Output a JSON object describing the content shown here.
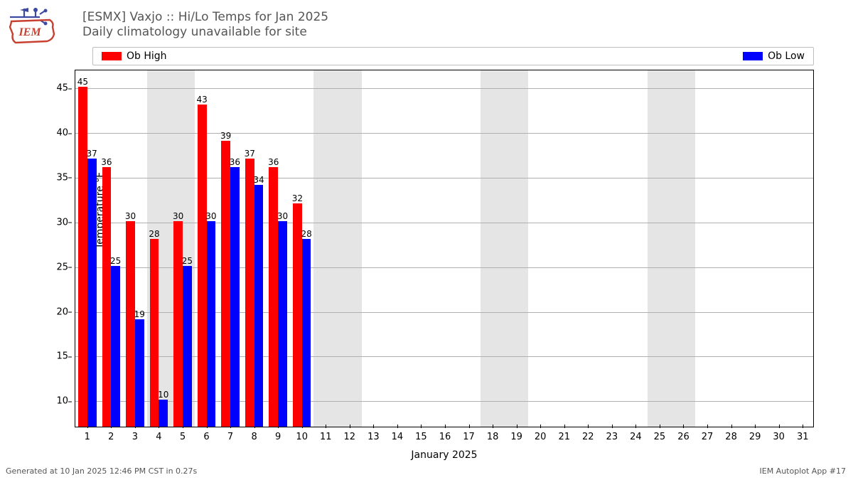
{
  "title_line1": "[ESMX] Vaxjo :: Hi/Lo Temps for Jan 2025",
  "title_line2": "Daily climatology unavailable for site",
  "legend": {
    "high": {
      "label": "Ob High",
      "color": "#ff0000"
    },
    "low": {
      "label": "Ob Low",
      "color": "#0000ff"
    }
  },
  "chart": {
    "type": "bar",
    "xlabel": "January 2025",
    "ylabel": "Temperature °F",
    "background_color": "#ffffff",
    "weekend_band_color": "#e5e5e5",
    "grid_color": "#b0b0b0",
    "text_color": "#000000",
    "title_color": "#555555",
    "xlim": [
      0.5,
      31.5
    ],
    "ylim": [
      7,
      47
    ],
    "yticks": [
      10,
      15,
      20,
      25,
      30,
      35,
      40,
      45
    ],
    "days": [
      1,
      2,
      3,
      4,
      5,
      6,
      7,
      8,
      9,
      10,
      11,
      12,
      13,
      14,
      15,
      16,
      17,
      18,
      19,
      20,
      21,
      22,
      23,
      24,
      25,
      26,
      27,
      28,
      29,
      30,
      31
    ],
    "weekend_days": [
      4,
      5,
      11,
      12,
      18,
      19,
      25,
      26
    ],
    "bar_width": 0.38,
    "label_fontsize": 12,
    "axis_fontsize": 13,
    "title_fontsize": 17,
    "data": [
      {
        "day": 1,
        "high": 45,
        "low": 37
      },
      {
        "day": 2,
        "high": 36,
        "low": 25
      },
      {
        "day": 3,
        "high": 30,
        "low": 19
      },
      {
        "day": 4,
        "high": 28,
        "low": 10
      },
      {
        "day": 5,
        "high": 30,
        "low": 25
      },
      {
        "day": 6,
        "high": 43,
        "low": 30
      },
      {
        "day": 7,
        "high": 39,
        "low": 36
      },
      {
        "day": 8,
        "high": 37,
        "low": 34
      },
      {
        "day": 9,
        "high": 36,
        "low": 30
      },
      {
        "day": 10,
        "high": 32,
        "low": 28
      }
    ]
  },
  "footer_left": "Generated at 10 Jan 2025 12:46 PM CST in 0.27s",
  "footer_right": "IEM Autoplot App #17",
  "logo_colors": {
    "tool": "#3c4aa3",
    "outline": "#c84030",
    "text": "#c84030"
  }
}
